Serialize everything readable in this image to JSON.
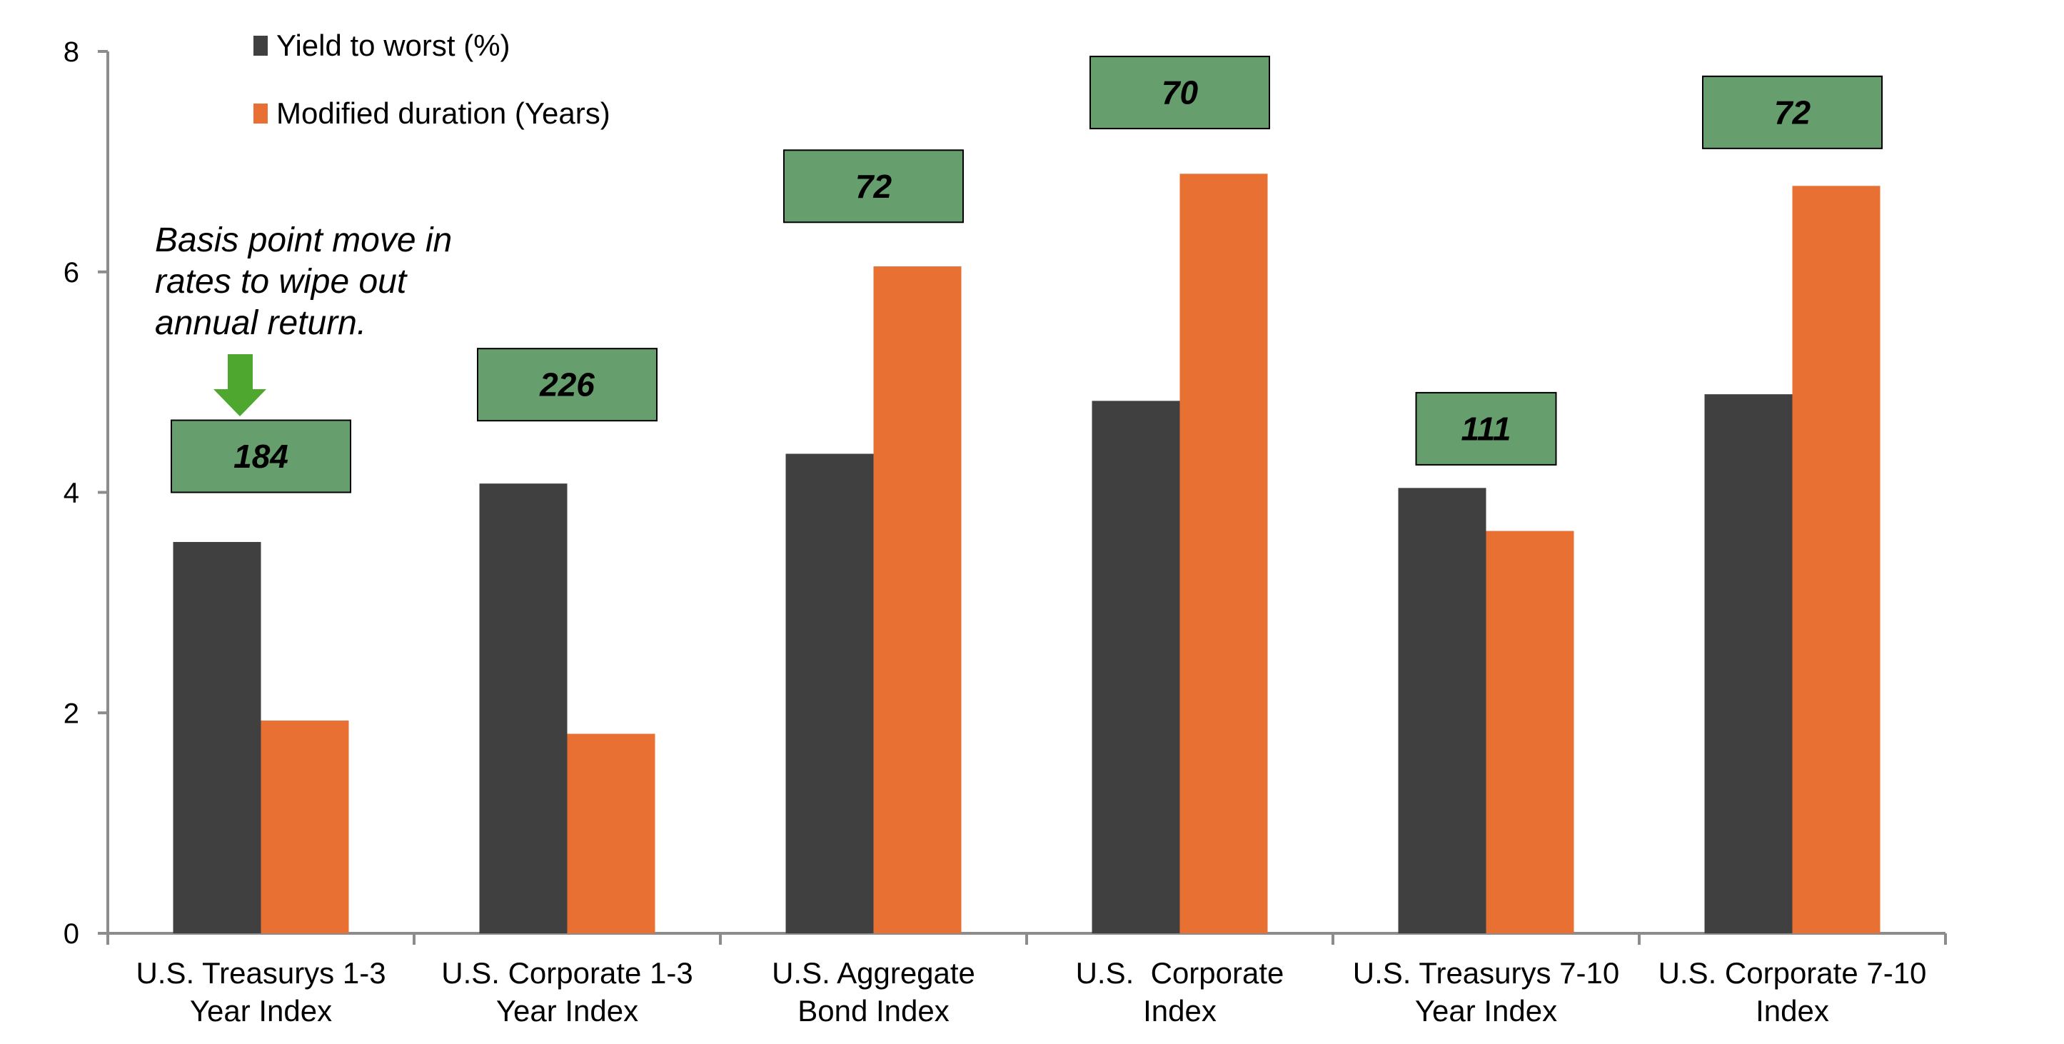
{
  "chart_data": {
    "type": "bar",
    "title": "",
    "xlabel": "",
    "ylabel": "",
    "ylim": [
      0,
      8
    ],
    "yticks": [
      0,
      2,
      4,
      6,
      8
    ],
    "grid": false,
    "legend_position": "top-left",
    "categories": [
      [
        "U.S. Treasurys 1-3",
        "Year Index"
      ],
      [
        "U.S. Corporate 1-3",
        "Year Index"
      ],
      [
        "U.S. Aggregate",
        "Bond Index"
      ],
      [
        "U.S.  Corporate",
        "Index"
      ],
      [
        "U.S. Treasurys 7-10",
        "Year Index"
      ],
      [
        "U.S. Corporate 7-10",
        "Index"
      ]
    ],
    "series": [
      {
        "name": "Yield to worst (%)",
        "color": "#404040",
        "values": [
          3.55,
          4.08,
          4.35,
          4.83,
          4.04,
          4.89
        ]
      },
      {
        "name": "Modified duration (Years)",
        "color": "#E87033",
        "values": [
          1.93,
          1.81,
          6.05,
          6.89,
          3.65,
          6.78
        ]
      }
    ],
    "annotations": {
      "callout_lines": [
        "Basis point move in",
        "rates to wipe out",
        "annual return."
      ],
      "box_color": "#679E6E",
      "arrow_color": "#4EA72E",
      "boxes": [
        {
          "category_index": 0,
          "label": "184",
          "y_value": 4.0
        },
        {
          "category_index": 1,
          "label": "226",
          "y_value": 4.65
        },
        {
          "category_index": 2,
          "label": "72",
          "y_value": 6.45
        },
        {
          "category_index": 3,
          "label": "70",
          "y_value": 7.3
        },
        {
          "category_index": 4,
          "label": "111",
          "y_value": 4.25
        },
        {
          "category_index": 5,
          "label": "72",
          "y_value": 7.12
        }
      ]
    }
  }
}
